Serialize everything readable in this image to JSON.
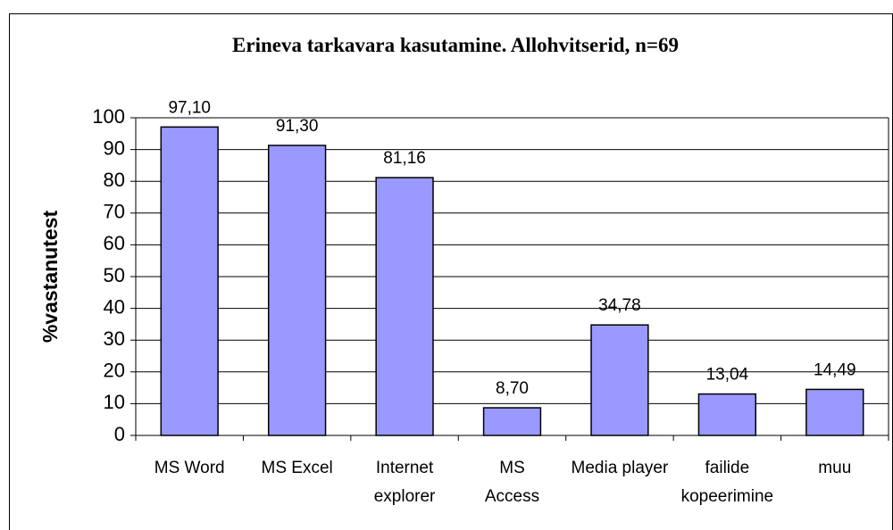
{
  "chart_data": {
    "type": "bar",
    "title": "Erineva tarkavara kasutamine. Allohvitserid, n=69",
    "y_label": "%vastanutest",
    "categories": [
      "MS Word",
      "MS Excel",
      "Internet\nexplorer",
      "MS\nAccess",
      "Media player",
      "failide\nkopeerimine",
      "muu"
    ],
    "values": [
      97.1,
      91.3,
      81.16,
      8.7,
      34.78,
      13.04,
      14.49
    ],
    "value_labels": [
      "97,10",
      "91,30",
      "81,16",
      "8,70",
      "34,78",
      "13,04",
      "14,49"
    ],
    "color": "#9999ff",
    "ylim": [
      0,
      100
    ],
    "yticks": [
      0,
      10,
      20,
      30,
      40,
      50,
      60,
      70,
      80,
      90,
      100
    ],
    "grid": true
  }
}
